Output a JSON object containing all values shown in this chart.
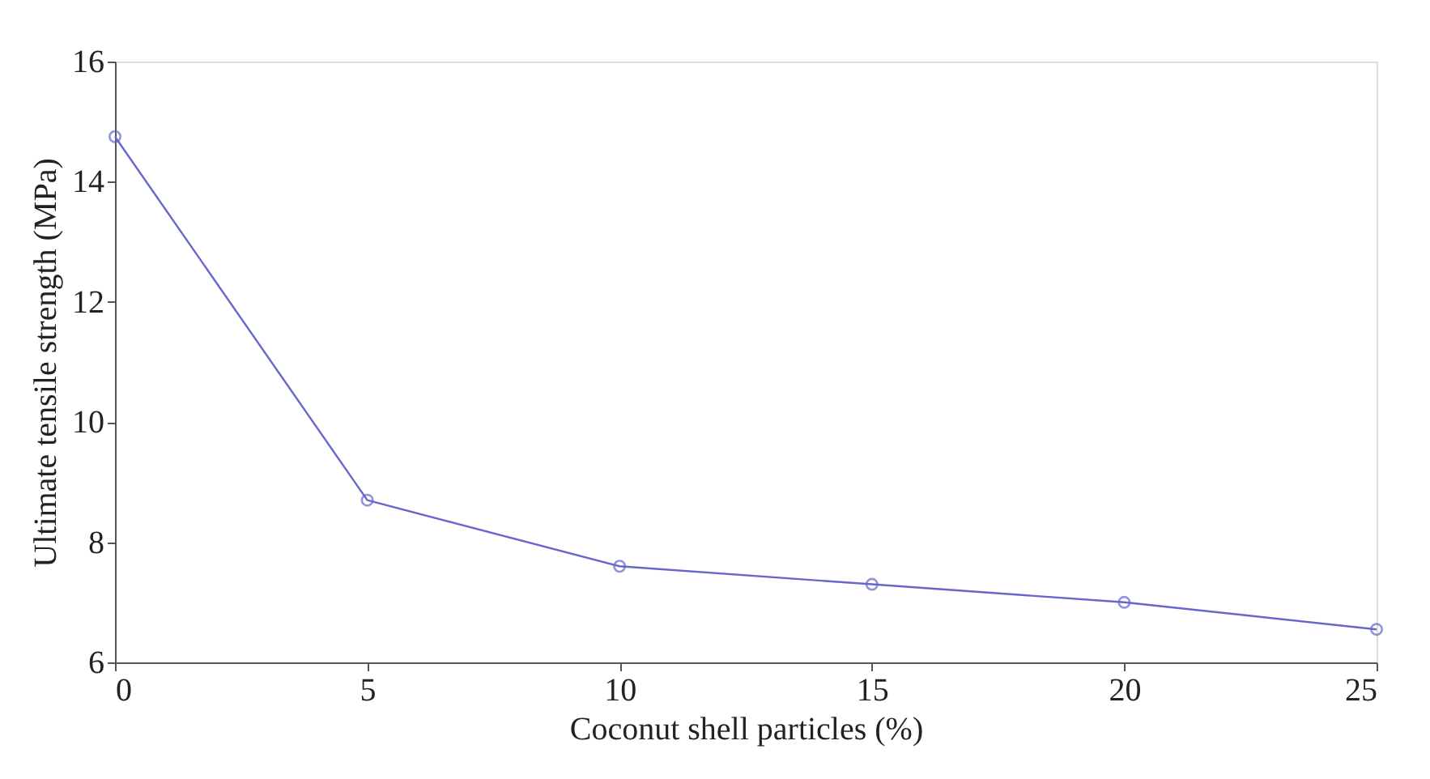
{
  "chart_data": {
    "type": "line",
    "xlabel": "Coconut shell particles (%)",
    "ylabel": "Ultimate tensile strength (MPa)",
    "x": [
      0,
      5,
      10,
      15,
      20,
      25
    ],
    "series": [
      {
        "color": "#6666cc",
        "values": [
          14.75,
          8.7,
          7.6,
          7.3,
          7.0,
          6.55
        ]
      }
    ],
    "xlim": [
      0,
      25
    ],
    "xticks": [
      0,
      5,
      10,
      15,
      20,
      25
    ],
    "ylim": [
      6,
      16
    ],
    "yticks": [
      6,
      8,
      10,
      12,
      14,
      16
    ],
    "grid": false,
    "legend": false,
    "marker": "circle",
    "line_style": "solid"
  }
}
